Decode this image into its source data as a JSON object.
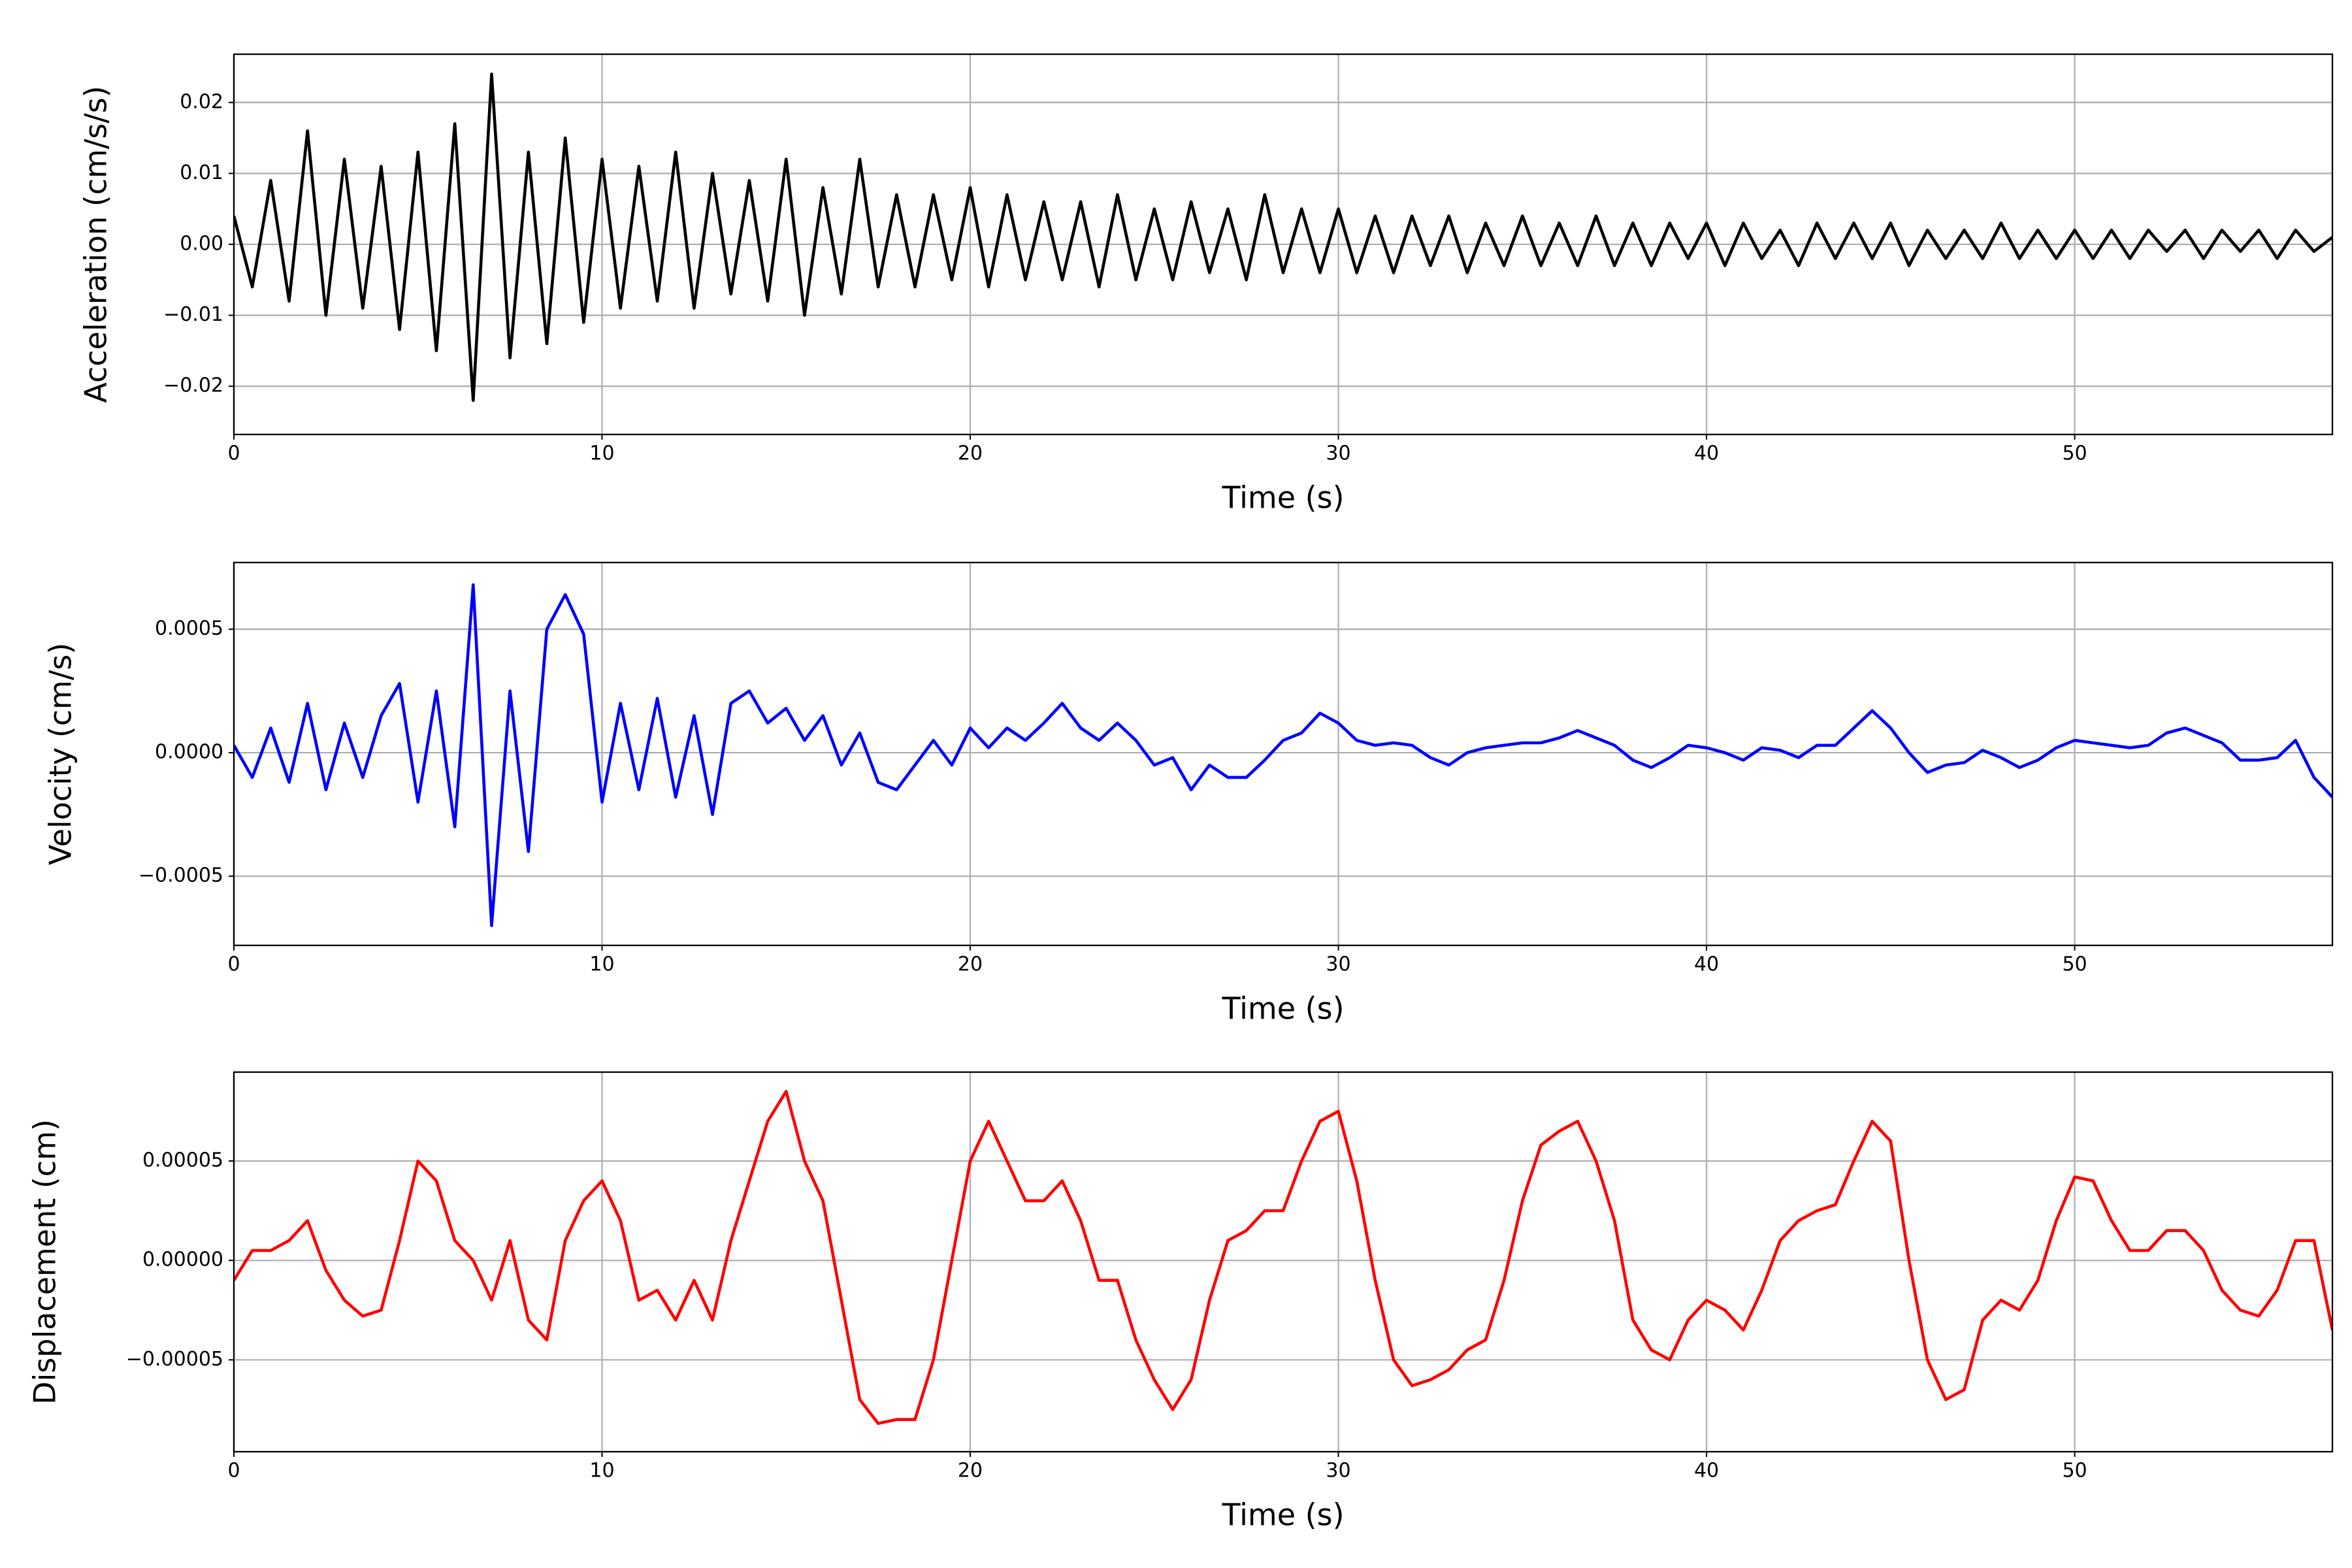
{
  "chart_data": [
    {
      "type": "line",
      "xlabel": "Time (s)",
      "ylabel": "Acceleration (cm/s/s)",
      "color": "#000000",
      "grid": true,
      "xlim": [
        0,
        57
      ],
      "xticks": [
        0,
        10,
        20,
        30,
        40,
        50
      ],
      "ylim": [
        -0.0268,
        0.0268
      ],
      "yticks": [
        {
          "value": -0.02,
          "label": "−0.02"
        },
        {
          "value": -0.01,
          "label": "−0.01"
        },
        {
          "value": 0,
          "label": "0.00"
        },
        {
          "value": 0.01,
          "label": "0.01"
        },
        {
          "value": 0.02,
          "label": "0.02"
        }
      ],
      "x": [
        0,
        0.5,
        1,
        1.5,
        2,
        2.5,
        3,
        3.5,
        4,
        4.5,
        5,
        5.5,
        6,
        6.5,
        7,
        7.5,
        8,
        8.5,
        9,
        9.5,
        10,
        10.5,
        11,
        11.5,
        12,
        12.5,
        13,
        13.5,
        14,
        14.5,
        15,
        15.5,
        16,
        16.5,
        17,
        17.5,
        18,
        18.5,
        19,
        19.5,
        20,
        20.5,
        21,
        21.5,
        22,
        22.5,
        23,
        23.5,
        24,
        24.5,
        25,
        25.5,
        26,
        26.5,
        27,
        27.5,
        28,
        28.5,
        29,
        29.5,
        30,
        30.5,
        31,
        31.5,
        32,
        32.5,
        33,
        33.5,
        34,
        34.5,
        35,
        35.5,
        36,
        36.5,
        37,
        37.5,
        38,
        38.5,
        39,
        39.5,
        40,
        40.5,
        41,
        41.5,
        42,
        42.5,
        43,
        43.5,
        44,
        44.5,
        45,
        45.5,
        46,
        46.5,
        47,
        47.5,
        48,
        48.5,
        49,
        49.5,
        50,
        50.5,
        51,
        51.5,
        52,
        52.5,
        53,
        53.5,
        54,
        54.5,
        55,
        55.5,
        56,
        56.5,
        57
      ],
      "values": [
        0.004,
        -0.006,
        0.009,
        -0.008,
        0.016,
        -0.01,
        0.012,
        -0.009,
        0.011,
        -0.012,
        0.013,
        -0.015,
        0.017,
        -0.022,
        0.024,
        -0.016,
        0.013,
        -0.014,
        0.015,
        -0.011,
        0.012,
        -0.009,
        0.011,
        -0.008,
        0.013,
        -0.009,
        0.01,
        -0.007,
        0.009,
        -0.008,
        0.012,
        -0.01,
        0.008,
        -0.007,
        0.012,
        -0.006,
        0.007,
        -0.006,
        0.007,
        -0.005,
        0.008,
        -0.006,
        0.007,
        -0.005,
        0.006,
        -0.005,
        0.006,
        -0.006,
        0.007,
        -0.005,
        0.005,
        -0.005,
        0.006,
        -0.004,
        0.005,
        -0.005,
        0.007,
        -0.004,
        0.005,
        -0.004,
        0.005,
        -0.004,
        0.004,
        -0.004,
        0.004,
        -0.003,
        0.004,
        -0.004,
        0.003,
        -0.003,
        0.004,
        -0.003,
        0.003,
        -0.003,
        0.004,
        -0.003,
        0.003,
        -0.003,
        0.003,
        -0.002,
        0.003,
        -0.003,
        0.003,
        -0.002,
        0.002,
        -0.003,
        0.003,
        -0.002,
        0.003,
        -0.002,
        0.003,
        -0.003,
        0.002,
        -0.002,
        0.002,
        -0.002,
        0.003,
        -0.002,
        0.002,
        -0.002,
        0.002,
        -0.002,
        0.002,
        -0.002,
        0.002,
        -0.001,
        0.002,
        -0.002,
        0.002,
        -0.001,
        0.002,
        -0.002,
        0.002,
        -0.001,
        0.001
      ]
    },
    {
      "type": "line",
      "xlabel": "Time (s)",
      "ylabel": "Velocity (cm/s)",
      "color": "#0000ff",
      "grid": true,
      "xlim": [
        0,
        57
      ],
      "xticks": [
        0,
        10,
        20,
        30,
        40,
        50
      ],
      "ylim": [
        -0.00078,
        0.00077
      ],
      "yticks": [
        {
          "value": -0.0005,
          "label": "−0.0005"
        },
        {
          "value": 0,
          "label": "0.0000"
        },
        {
          "value": 0.0005,
          "label": "0.0005"
        }
      ],
      "x": [
        0,
        0.5,
        1,
        1.5,
        2,
        2.5,
        3,
        3.5,
        4,
        4.5,
        5,
        5.5,
        6,
        6.5,
        7,
        7.5,
        8,
        8.5,
        9,
        9.5,
        10,
        10.5,
        11,
        11.5,
        12,
        12.5,
        13,
        13.5,
        14,
        14.5,
        15,
        15.5,
        16,
        16.5,
        17,
        17.5,
        18,
        18.5,
        19,
        19.5,
        20,
        20.5,
        21,
        21.5,
        22,
        22.5,
        23,
        23.5,
        24,
        24.5,
        25,
        25.5,
        26,
        26.5,
        27,
        27.5,
        28,
        28.5,
        29,
        29.5,
        30,
        30.5,
        31,
        31.5,
        32,
        32.5,
        33,
        33.5,
        34,
        34.5,
        35,
        35.5,
        36,
        36.5,
        37,
        37.5,
        38,
        38.5,
        39,
        39.5,
        40,
        40.5,
        41,
        41.5,
        42,
        42.5,
        43,
        43.5,
        44,
        44.5,
        45,
        45.5,
        46,
        46.5,
        47,
        47.5,
        48,
        48.5,
        49,
        49.5,
        50,
        50.5,
        51,
        51.5,
        52,
        52.5,
        53,
        53.5,
        54,
        54.5,
        55,
        55.5,
        56,
        56.5,
        57
      ],
      "values": [
        3e-05,
        -0.0001,
        0.0001,
        -0.00012,
        0.0002,
        -0.00015,
        0.00012,
        -0.0001,
        0.00015,
        0.00028,
        -0.0002,
        0.00025,
        -0.0003,
        0.00068,
        -0.0007,
        0.00025,
        -0.0004,
        0.0005,
        0.00064,
        0.00048,
        -0.0002,
        0.0002,
        -0.00015,
        0.00022,
        -0.00018,
        0.00015,
        -0.00025,
        0.0002,
        0.00025,
        0.00012,
        0.00018,
        5e-05,
        0.00015,
        -5e-05,
        8e-05,
        -0.00012,
        -0.00015,
        -5e-05,
        5e-05,
        -5e-05,
        0.0001,
        2e-05,
        0.0001,
        5e-05,
        0.00012,
        0.0002,
        0.0001,
        5e-05,
        0.00012,
        5e-05,
        -5e-05,
        -2e-05,
        -0.00015,
        -5e-05,
        -0.0001,
        -0.0001,
        -3e-05,
        5e-05,
        8e-05,
        0.00016,
        0.00012,
        5e-05,
        3e-05,
        4e-05,
        3e-05,
        -2e-05,
        -5e-05,
        0,
        2e-05,
        3e-05,
        4e-05,
        4e-05,
        6e-05,
        9e-05,
        6e-05,
        3e-05,
        -3e-05,
        -6e-05,
        -2e-05,
        3e-05,
        2e-05,
        0,
        -3e-05,
        2e-05,
        1e-05,
        -2e-05,
        3e-05,
        3e-05,
        0.0001,
        0.00017,
        0.0001,
        0,
        -8e-05,
        -5e-05,
        -4e-05,
        1e-05,
        -2e-05,
        -6e-05,
        -3e-05,
        2e-05,
        5e-05,
        4e-05,
        3e-05,
        2e-05,
        3e-05,
        8e-05,
        0.0001,
        7e-05,
        4e-05,
        -3e-05,
        -3e-05,
        -2e-05,
        5e-05,
        -0.0001,
        -0.00018
      ]
    },
    {
      "type": "line",
      "xlabel": "Time (s)",
      "ylabel": "Displacement (cm)",
      "color": "#ff0000",
      "grid": true,
      "xlim": [
        0,
        57
      ],
      "xticks": [
        0,
        10,
        20,
        30,
        40,
        50
      ],
      "ylim": [
        -9.62e-05,
        9.47e-05
      ],
      "yticks": [
        {
          "value": -5e-05,
          "label": "−0.00005"
        },
        {
          "value": 0,
          "label": "0.00000"
        },
        {
          "value": 5e-05,
          "label": "0.00005"
        }
      ],
      "x": [
        0,
        0.5,
        1,
        1.5,
        2,
        2.5,
        3,
        3.5,
        4,
        4.5,
        5,
        5.5,
        6,
        6.5,
        7,
        7.5,
        8,
        8.5,
        9,
        9.5,
        10,
        10.5,
        11,
        11.5,
        12,
        12.5,
        13,
        13.5,
        14,
        14.5,
        15,
        15.5,
        16,
        16.5,
        17,
        17.5,
        18,
        18.5,
        19,
        19.5,
        20,
        20.5,
        21,
        21.5,
        22,
        22.5,
        23,
        23.5,
        24,
        24.5,
        25,
        25.5,
        26,
        26.5,
        27,
        27.5,
        28,
        28.5,
        29,
        29.5,
        30,
        30.5,
        31,
        31.5,
        32,
        32.5,
        33,
        33.5,
        34,
        34.5,
        35,
        35.5,
        36,
        36.5,
        37,
        37.5,
        38,
        38.5,
        39,
        39.5,
        40,
        40.5,
        41,
        41.5,
        42,
        42.5,
        43,
        43.5,
        44,
        44.5,
        45,
        45.5,
        46,
        46.5,
        47,
        47.5,
        48,
        48.5,
        49,
        49.5,
        50,
        50.5,
        51,
        51.5,
        52,
        52.5,
        53,
        53.5,
        54,
        54.5,
        55,
        55.5,
        56,
        56.5,
        57
      ],
      "values": [
        -1e-05,
        5e-06,
        5e-06,
        1e-05,
        2e-05,
        -5e-06,
        -2e-05,
        -2.8e-05,
        -2.5e-05,
        1e-05,
        5e-05,
        4e-05,
        1e-05,
        0,
        -2e-05,
        1e-05,
        -3e-05,
        -4e-05,
        1e-05,
        3e-05,
        4e-05,
        2e-05,
        -2e-05,
        -1.5e-05,
        -3e-05,
        -1e-05,
        -3e-05,
        1e-05,
        4e-05,
        7e-05,
        8.5e-05,
        5e-05,
        3e-05,
        -2e-05,
        -7e-05,
        -8.2e-05,
        -8e-05,
        -8e-05,
        -5e-05,
        0,
        5e-05,
        7e-05,
        5e-05,
        3e-05,
        3e-05,
        4e-05,
        2e-05,
        -1e-05,
        -1e-05,
        -4e-05,
        -6e-05,
        -7.5e-05,
        -6e-05,
        -2e-05,
        1e-05,
        1.5e-05,
        2.5e-05,
        2.5e-05,
        5e-05,
        7e-05,
        7.5e-05,
        4e-05,
        -1e-05,
        -5e-05,
        -6.3e-05,
        -6e-05,
        -5.5e-05,
        -4.5e-05,
        -4e-05,
        -1e-05,
        3e-05,
        5.8e-05,
        6.5e-05,
        7e-05,
        5e-05,
        2e-05,
        -3e-05,
        -4.5e-05,
        -5e-05,
        -3e-05,
        -2e-05,
        -2.5e-05,
        -3.5e-05,
        -1.5e-05,
        1e-05,
        2e-05,
        2.5e-05,
        2.8e-05,
        5e-05,
        7e-05,
        6e-05,
        0,
        -5e-05,
        -7e-05,
        -6.5e-05,
        -3e-05,
        -2e-05,
        -2.5e-05,
        -1e-05,
        2e-05,
        4.2e-05,
        4e-05,
        2e-05,
        5e-06,
        5e-06,
        1.5e-05,
        1.5e-05,
        5e-06,
        -1.5e-05,
        -2.5e-05,
        -2.8e-05,
        -1.5e-05,
        1e-05,
        1e-05,
        -3.5e-05
      ]
    }
  ]
}
